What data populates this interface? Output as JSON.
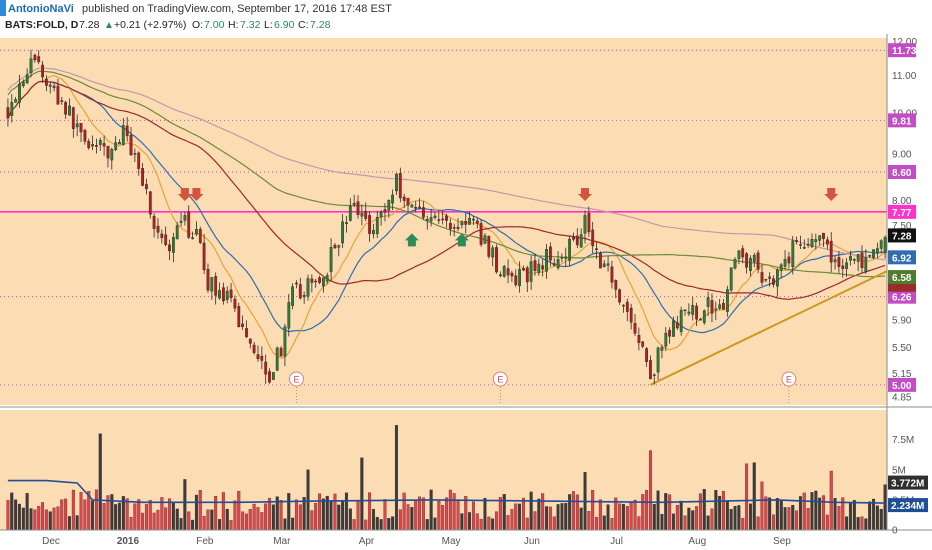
{
  "header": {
    "author": "AntonioNaVi",
    "published": "published on TradingView.com, September 17, 2016 17:48 EST"
  },
  "ticker": {
    "symbol": "BATS:FOLD, D",
    "last": "7.28",
    "change": "+0.21 (+2.97%)",
    "o_label": "O:",
    "o": "7.00",
    "h_label": "H:",
    "h": "7.32",
    "l_label": "L:",
    "l": "6.90",
    "c_label": "C:",
    "c": "7.28"
  },
  "colors": {
    "background": "#fcdcb2",
    "up_candle": "#2e7d32",
    "down_candle": "#b71c1c",
    "wick": "#2b2b2b",
    "hline_magenta": "#ff33cc",
    "ma_blue": "#2f6db0",
    "ma_orange": "#e8a33a",
    "ma_dark_red": "#9c2a2a",
    "ma_green": "#6f8a3a",
    "ma_purple": "#c09aac",
    "trendline": "#c99a1d",
    "arrow_down": "#d2553c",
    "arrow_up": "#2e8b57",
    "vol_up": "#3b3b3b",
    "vol_down": "#e0434c",
    "vol_avg": "#1f4e99"
  },
  "chart_data": [
    {
      "type": "candlestick",
      "title": "BATS:FOLD, D",
      "x_ticks": [
        "Dec",
        "2016",
        "Feb",
        "Mar",
        "Apr",
        "May",
        "Jun",
        "Jul",
        "Aug",
        "Sep"
      ],
      "y_ticks": [
        "12.00",
        "11.00",
        "10.00",
        "9.00",
        "8.00",
        "7.50",
        "6.50",
        "5.90",
        "5.50",
        "5.15",
        "4.85"
      ],
      "ylim": [
        4.75,
        12.1
      ],
      "y_scale": "log",
      "horizontal_levels": [
        {
          "value": 11.73,
          "label": "11.73",
          "color": "#c24dc4",
          "style": "dotted"
        },
        {
          "value": 9.81,
          "label": "9.81",
          "color": "#c24dc4",
          "style": "dotted"
        },
        {
          "value": 8.6,
          "label": "8.60",
          "color": "#c24dc4",
          "style": "dotted"
        },
        {
          "value": 7.77,
          "label": "7.77",
          "color": "#ff33cc",
          "style": "solid"
        },
        {
          "value": 6.26,
          "label": "6.26",
          "color": "#c24dc4",
          "style": "dotted"
        },
        {
          "value": 5.0,
          "label": "5.00",
          "color": "#c24dc4",
          "style": "dotted"
        }
      ],
      "price_badges": [
        {
          "label": "7.28",
          "value": 7.28,
          "color": "#111111"
        },
        {
          "label": "6.92",
          "value": 6.92,
          "color": "#2f6db0"
        },
        {
          "label": "6.58",
          "value": 6.58,
          "color": "#4e7d2e"
        }
      ],
      "earnings_label": "E",
      "ohlc_anchors": [
        {
          "i": 0,
          "c": 10.1
        },
        {
          "i": 4,
          "c": 11.0
        },
        {
          "i": 7,
          "c": 11.5
        },
        {
          "i": 10,
          "c": 10.8
        },
        {
          "i": 14,
          "c": 10.3
        },
        {
          "i": 18,
          "c": 9.6
        },
        {
          "i": 22,
          "c": 9.2
        },
        {
          "i": 26,
          "c": 9.0
        },
        {
          "i": 30,
          "c": 9.5
        },
        {
          "i": 34,
          "c": 8.8
        },
        {
          "i": 38,
          "c": 7.5
        },
        {
          "i": 42,
          "c": 6.9
        },
        {
          "i": 45,
          "c": 7.6
        },
        {
          "i": 49,
          "c": 7.3
        },
        {
          "i": 52,
          "c": 6.5
        },
        {
          "i": 56,
          "c": 6.3
        },
        {
          "i": 60,
          "c": 5.9
        },
        {
          "i": 64,
          "c": 5.5
        },
        {
          "i": 68,
          "c": 5.15
        },
        {
          "i": 71,
          "c": 5.5
        },
        {
          "i": 74,
          "c": 6.3
        },
        {
          "i": 78,
          "c": 6.4
        },
        {
          "i": 82,
          "c": 6.6
        },
        {
          "i": 86,
          "c": 7.3
        },
        {
          "i": 90,
          "c": 7.9
        },
        {
          "i": 94,
          "c": 7.5
        },
        {
          "i": 98,
          "c": 7.8
        },
        {
          "i": 101,
          "c": 8.4
        },
        {
          "i": 104,
          "c": 7.9
        },
        {
          "i": 108,
          "c": 7.8
        },
        {
          "i": 112,
          "c": 7.6
        },
        {
          "i": 116,
          "c": 7.5
        },
        {
          "i": 120,
          "c": 7.6
        },
        {
          "i": 124,
          "c": 7.2
        },
        {
          "i": 128,
          "c": 6.7
        },
        {
          "i": 132,
          "c": 6.5
        },
        {
          "i": 136,
          "c": 6.7
        },
        {
          "i": 140,
          "c": 6.9
        },
        {
          "i": 144,
          "c": 7.0
        },
        {
          "i": 148,
          "c": 7.3
        },
        {
          "i": 150,
          "c": 7.7
        },
        {
          "i": 153,
          "c": 7.0
        },
        {
          "i": 157,
          "c": 6.6
        },
        {
          "i": 161,
          "c": 6.0
        },
        {
          "i": 164,
          "c": 5.6
        },
        {
          "i": 167,
          "c": 5.1
        },
        {
          "i": 170,
          "c": 5.5
        },
        {
          "i": 174,
          "c": 5.9
        },
        {
          "i": 178,
          "c": 6.0
        },
        {
          "i": 182,
          "c": 6.1
        },
        {
          "i": 186,
          "c": 6.2
        },
        {
          "i": 190,
          "c": 7.0
        },
        {
          "i": 194,
          "c": 6.8
        },
        {
          "i": 198,
          "c": 6.5
        },
        {
          "i": 202,
          "c": 6.9
        },
        {
          "i": 206,
          "c": 7.2
        },
        {
          "i": 210,
          "c": 7.3
        },
        {
          "i": 213,
          "c": 7.0
        },
        {
          "i": 216,
          "c": 6.8
        },
        {
          "i": 220,
          "c": 6.9
        },
        {
          "i": 224,
          "c": 6.8
        },
        {
          "i": 228,
          "c": 7.28
        }
      ],
      "bar_count": 229,
      "moving_averages": [
        {
          "color": "#2f6db0",
          "period": 20
        },
        {
          "color": "#e8a33a",
          "period": 10
        },
        {
          "color": "#9c2a2a",
          "period": 50
        },
        {
          "color": "#6f8a3a",
          "period": 100
        },
        {
          "color": "#c09aac",
          "period": 200
        }
      ],
      "trendline": {
        "from": {
          "i": 167,
          "value": 5.0
        },
        "to": {
          "i": 228,
          "value": 6.58
        }
      },
      "arrows_down": [
        {
          "i": 46,
          "value": 8.05
        },
        {
          "i": 49,
          "value": 8.05
        },
        {
          "i": 150,
          "value": 8.05
        },
        {
          "i": 214,
          "value": 8.05
        }
      ],
      "arrows_up": [
        {
          "i": 105,
          "value": 7.3
        },
        {
          "i": 118,
          "value": 7.3
        }
      ],
      "earnings_markers": [
        {
          "i": 75
        },
        {
          "i": 128
        },
        {
          "i": 203
        }
      ]
    },
    {
      "type": "bar",
      "title": "Volume",
      "y_ticks": [
        "7.5M",
        "5M",
        "2.5M",
        "0"
      ],
      "ylim": [
        0,
        9.3
      ],
      "unit": "M",
      "badges": [
        {
          "label": "3.772M",
          "value": 3.772,
          "color": "#2e2e2e"
        },
        {
          "label": "2.234M",
          "value": 2.234,
          "color": "#1f4e99"
        }
      ],
      "spikes": [
        {
          "i": 24,
          "v": 8.0
        },
        {
          "i": 46,
          "v": 4.2
        },
        {
          "i": 78,
          "v": 5.0
        },
        {
          "i": 92,
          "v": 6.0
        },
        {
          "i": 101,
          "v": 8.7
        },
        {
          "i": 150,
          "v": 4.8
        },
        {
          "i": 167,
          "v": 6.6
        },
        {
          "i": 192,
          "v": 5.5
        },
        {
          "i": 194,
          "v": 5.6
        },
        {
          "i": 196,
          "v": 4.0
        },
        {
          "i": 214,
          "v": 4.9
        },
        {
          "i": 228,
          "v": 3.772
        }
      ],
      "avg_line": [
        {
          "i": 0,
          "v": 4.1
        },
        {
          "i": 10,
          "v": 4.1
        },
        {
          "i": 18,
          "v": 3.9
        },
        {
          "i": 22,
          "v": 2.5
        },
        {
          "i": 35,
          "v": 2.3
        },
        {
          "i": 60,
          "v": 2.3
        },
        {
          "i": 80,
          "v": 2.4
        },
        {
          "i": 110,
          "v": 2.5
        },
        {
          "i": 140,
          "v": 2.4
        },
        {
          "i": 170,
          "v": 2.3
        },
        {
          "i": 200,
          "v": 2.5
        },
        {
          "i": 215,
          "v": 2.3
        },
        {
          "i": 228,
          "v": 2.234
        }
      ]
    }
  ]
}
